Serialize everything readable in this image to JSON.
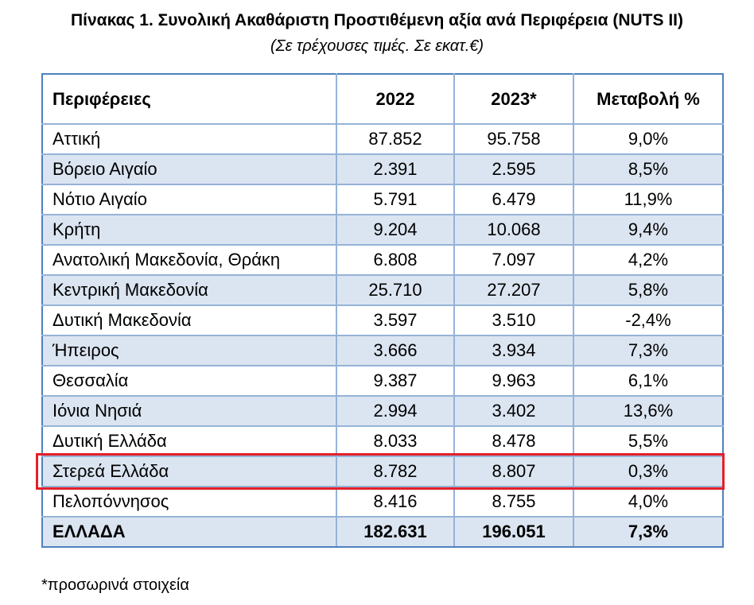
{
  "title": "Πίνακας 1. Συνολική Ακαθάριστη Προστιθέμενη αξία ανά  Περιφέρεια (NUTS II)",
  "subtitle": "(Σε τρέχουσες τιμές. Σε εκατ.€)",
  "table": {
    "headers": [
      "Περιφέρειες",
      "2022",
      "2023*",
      "Μεταβολή %"
    ],
    "rows": [
      [
        "Αττική",
        "87.852",
        "95.758",
        "9,0%"
      ],
      [
        "Βόρειο Αιγαίο",
        "2.391",
        "2.595",
        "8,5%"
      ],
      [
        "Νότιο Αιγαίο",
        "5.791",
        "6.479",
        "11,9%"
      ],
      [
        "Κρήτη",
        "9.204",
        "10.068",
        "9,4%"
      ],
      [
        "Ανατολική Μακεδονία, Θράκη",
        "6.808",
        "7.097",
        "4,2%"
      ],
      [
        "Κεντρική Μακεδονία",
        "25.710",
        "27.207",
        "5,8%"
      ],
      [
        "Δυτική Μακεδονία",
        "3.597",
        "3.510",
        "-2,4%"
      ],
      [
        "Ήπειρος",
        "3.666",
        "3.934",
        "7,3%"
      ],
      [
        "Θεσσαλία",
        "9.387",
        "9.963",
        "6,1%"
      ],
      [
        "Ιόνια Νησιά",
        "2.994",
        "3.402",
        "13,6%"
      ],
      [
        "Δυτική Ελλάδα",
        "8.033",
        "8.478",
        "5,5%"
      ],
      [
        "Στερεά Ελλάδα",
        "8.782",
        "8.807",
        "0,3%"
      ],
      [
        "Πελοπόννησος",
        "8.416",
        "8.755",
        "4,0%"
      ]
    ],
    "total": [
      "ΕΛΛΑΔΑ",
      "182.631",
      "196.051",
      "7,3%"
    ],
    "highlighted_region": "Στερεά Ελλάδα"
  },
  "footnote": "*προσωρινά στοιχεία",
  "colors": {
    "border": "#95b3d7",
    "outer_border": "#4f81bd",
    "row_shade": "#dbe5f1",
    "highlight": "#e3202a"
  }
}
